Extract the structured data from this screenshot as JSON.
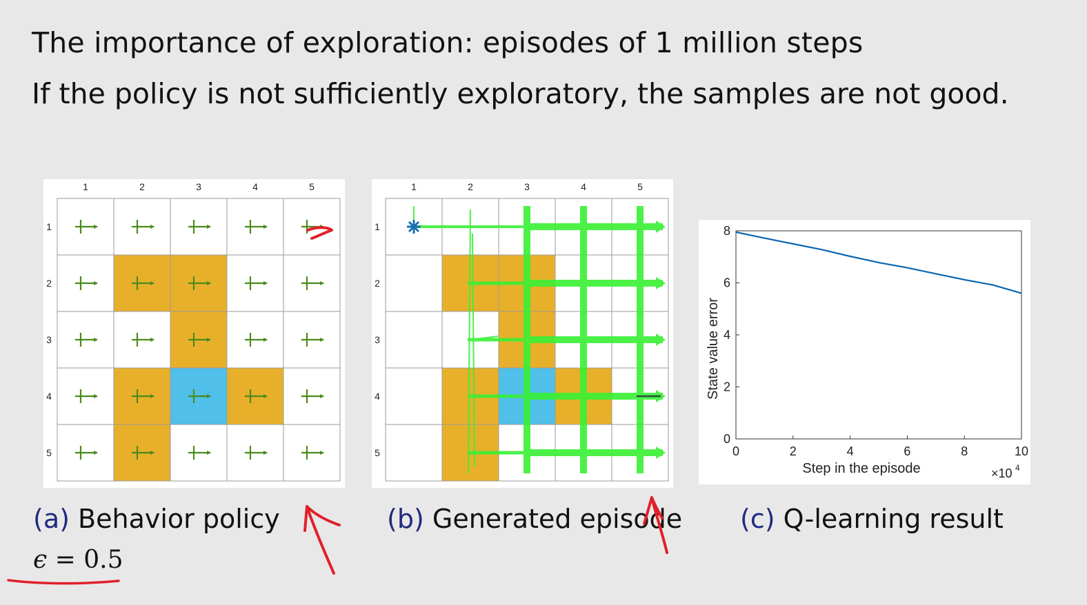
{
  "slide": {
    "title": "The importance of exploration: episodes of 1 million steps",
    "subtitle": "If the policy is not sufficiently exploratory, the samples are not good."
  },
  "grid": {
    "col_labels": [
      "1",
      "2",
      "3",
      "4",
      "5"
    ],
    "row_labels": [
      "1",
      "2",
      "3",
      "4",
      "5"
    ],
    "forbidden_cells": [
      [
        2,
        2
      ],
      [
        2,
        3
      ],
      [
        3,
        3
      ],
      [
        4,
        2
      ],
      [
        4,
        4
      ],
      [
        5,
        2
      ]
    ],
    "target_cell": [
      4,
      3
    ],
    "colors": {
      "forbidden": "#e8b02a",
      "target": "#50bfea",
      "arrow": "#4a8a1a",
      "episode": "#39f035",
      "start": "#1a6fb0"
    }
  },
  "captions": {
    "a": {
      "tag": "(a)",
      "text": "Behavior policy"
    },
    "b": {
      "tag": "(b)",
      "text": "Generated episode"
    },
    "c": {
      "tag": "(c)",
      "text": "Q-learning result"
    }
  },
  "epsilon": {
    "symbol": "ϵ",
    "rest": " = 0.5"
  },
  "chart_data": {
    "type": "line",
    "xlabel": "Step in the episode",
    "ylabel": "State value error",
    "x_multiplier": "×10",
    "x_multiplier_exp": "4",
    "xlim": [
      0,
      10
    ],
    "ylim": [
      0,
      8
    ],
    "xticks": [
      "0",
      "2",
      "4",
      "6",
      "8",
      "10"
    ],
    "yticks": [
      "0",
      "2",
      "4",
      "6",
      "8"
    ],
    "series": [
      {
        "color": "#0a66b0",
        "x": [
          0,
          1,
          2,
          3,
          4,
          5,
          6,
          7,
          8,
          9,
          10
        ],
        "y": [
          7.95,
          7.72,
          7.5,
          7.28,
          7.02,
          6.78,
          6.58,
          6.35,
          6.12,
          5.92,
          5.6
        ]
      }
    ]
  }
}
